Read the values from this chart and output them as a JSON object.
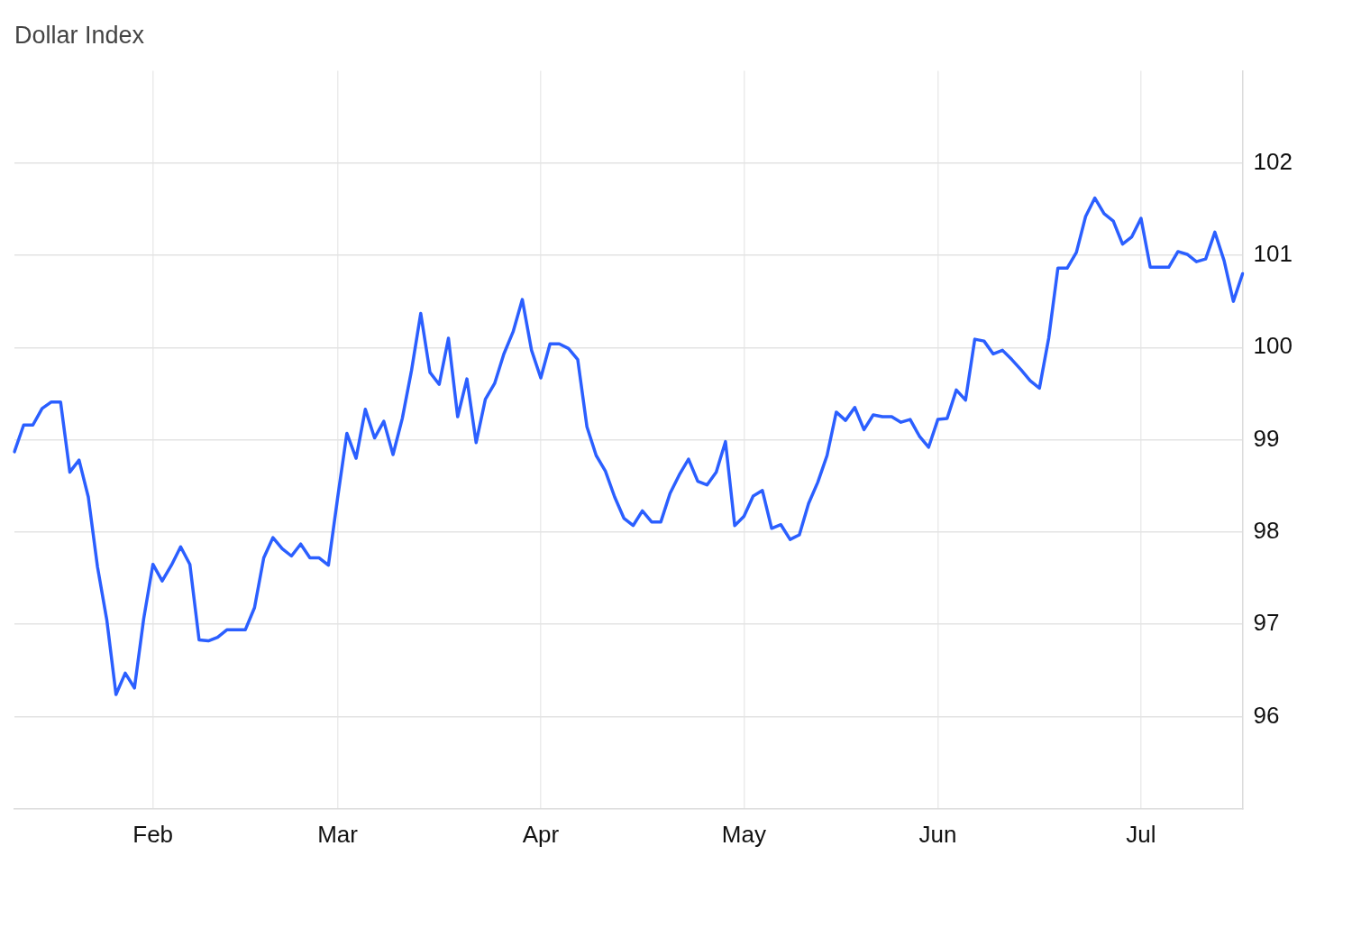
{
  "chart_data": {
    "type": "line",
    "title": "Dollar Index",
    "categories": [
      null,
      null,
      null,
      null,
      null,
      null,
      null,
      null,
      null,
      null,
      null,
      null,
      null,
      null,
      null,
      "Feb",
      null,
      null,
      null,
      null,
      null,
      null,
      null,
      null,
      null,
      null,
      null,
      null,
      null,
      null,
      null,
      null,
      null,
      null,
      null,
      "Mar",
      null,
      null,
      null,
      null,
      null,
      null,
      null,
      null,
      null,
      null,
      null,
      null,
      null,
      null,
      null,
      null,
      null,
      null,
      null,
      null,
      null,
      "Apr",
      null,
      null,
      null,
      null,
      null,
      null,
      null,
      null,
      null,
      null,
      null,
      null,
      null,
      null,
      null,
      null,
      null,
      null,
      null,
      null,
      null,
      "May",
      null,
      null,
      null,
      null,
      null,
      null,
      null,
      null,
      null,
      null,
      null,
      null,
      null,
      null,
      null,
      null,
      null,
      null,
      null,
      null,
      "Jun",
      null,
      null,
      null,
      null,
      null,
      null,
      null,
      null,
      null,
      null,
      null,
      null,
      null,
      null,
      null,
      null,
      null,
      null,
      null,
      null,
      null,
      "Jul",
      null,
      null,
      null,
      null,
      null,
      null,
      null,
      null,
      null,
      null,
      null
    ],
    "series": [
      {
        "color": "#2b5fff",
        "values": [
          98.87,
          99.16,
          99.16,
          99.34,
          99.41,
          99.41,
          98.65,
          98.78,
          98.38,
          97.62,
          97.05,
          96.24,
          96.47,
          96.31,
          97.06,
          97.65,
          97.47,
          97.64,
          97.84,
          97.65,
          96.83,
          96.82,
          96.86,
          96.94,
          96.94,
          96.94,
          97.18,
          97.72,
          97.94,
          97.82,
          97.74,
          97.87,
          97.72,
          97.72,
          97.64,
          98.37,
          99.07,
          98.8,
          99.33,
          99.02,
          99.2,
          98.84,
          99.23,
          99.75,
          100.37,
          99.73,
          99.6,
          100.1,
          99.25,
          99.66,
          98.97,
          99.44,
          99.61,
          99.93,
          100.17,
          100.52,
          99.97,
          99.67,
          100.04,
          100.04,
          99.99,
          99.87,
          99.14,
          98.83,
          98.66,
          98.38,
          98.15,
          98.07,
          98.23,
          98.11,
          98.11,
          98.42,
          98.62,
          98.79,
          98.55,
          98.51,
          98.65,
          98.98,
          98.07,
          98.17,
          98.39,
          98.45,
          98.04,
          98.08,
          97.92,
          97.97,
          98.31,
          98.54,
          98.83,
          99.3,
          99.21,
          99.35,
          99.11,
          99.27,
          99.25,
          99.25,
          99.19,
          99.22,
          99.04,
          98.92,
          99.22,
          99.23,
          99.54,
          99.43,
          100.09,
          100.07,
          99.93,
          99.97,
          99.87,
          99.76,
          99.64,
          99.56,
          100.1,
          100.86,
          100.86,
          101.03,
          101.42,
          101.62,
          101.45,
          101.37,
          101.12,
          101.2,
          101.4,
          100.87,
          100.87,
          100.87,
          101.04,
          101.01,
          100.93,
          100.96,
          101.25,
          100.94,
          100.5,
          100.8
        ]
      }
    ],
    "ylim": [
      95,
      103
    ],
    "yticks": [
      96,
      97,
      98,
      99,
      100,
      101,
      102
    ],
    "grid": true,
    "legend": false,
    "marker": "none",
    "line_style": "solid"
  }
}
